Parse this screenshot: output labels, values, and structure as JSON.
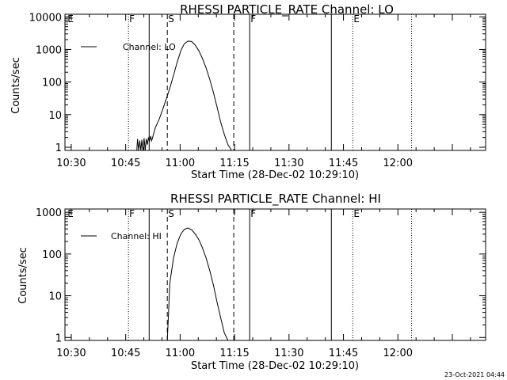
{
  "timestamp": "23-Oct-2021 04:44",
  "chart_data": [
    {
      "type": "line",
      "title": "RHESSI PARTICLE_RATE Channel: LO",
      "xlabel": "Start Time (28-Dec-02 10:29:10)",
      "ylabel": "Counts/sec",
      "yscale": "log",
      "xlim": [
        -0.9,
        115
      ],
      "ylim": [
        0.8,
        12000
      ],
      "xticks": [
        {
          "v": 0.833,
          "label": "10:30"
        },
        {
          "v": 15.833,
          "label": "10:45"
        },
        {
          "v": 30.833,
          "label": "11:00"
        },
        {
          "v": 45.833,
          "label": "11:15"
        },
        {
          "v": 60.833,
          "label": "11:30"
        },
        {
          "v": 75.833,
          "label": "11:45"
        },
        {
          "v": 90.833,
          "label": "12:00"
        }
      ],
      "yticks": [
        {
          "v": 1,
          "label": "1"
        },
        {
          "v": 10,
          "label": "10"
        },
        {
          "v": 100,
          "label": "100"
        },
        {
          "v": 1000,
          "label": "1000"
        },
        {
          "v": 10000,
          "label": "10000"
        }
      ],
      "legend": {
        "label": "Channel: LO",
        "position": "top-left"
      },
      "markers": [
        {
          "x": -0.4,
          "style": "none",
          "label": "E"
        },
        {
          "x": 16.6,
          "style": "dotted",
          "label": "F"
        },
        {
          "x": 22.3,
          "style": "solid",
          "label": ""
        },
        {
          "x": 27.3,
          "style": "dashed",
          "label": "S"
        },
        {
          "x": 45.6,
          "style": "dashed",
          "label": ""
        },
        {
          "x": 50.0,
          "style": "solid",
          "label": "F"
        },
        {
          "x": 72.5,
          "style": "solid",
          "label": ""
        },
        {
          "x": 78.4,
          "style": "dotted",
          "label": "E"
        },
        {
          "x": 94.6,
          "style": "dotted",
          "label": ""
        }
      ],
      "series": [
        {
          "name": "Channel: LO",
          "x": [
            18.9,
            19.1,
            19.4,
            19.7,
            20.0,
            20.3,
            20.6,
            20.9,
            21.2,
            21.5,
            21.8,
            22.1,
            22.4,
            22.7,
            23.0,
            24.0,
            25.0,
            26.0,
            27.0,
            28.0,
            29.0,
            30.0,
            31.0,
            32.0,
            33.0,
            34.0,
            35.0,
            36.0,
            37.0,
            38.0,
            39.0,
            40.0,
            41.0,
            42.0,
            43.0,
            44.0,
            45.0
          ],
          "values": [
            0.8,
            1.8,
            0.8,
            1.6,
            0.8,
            1.7,
            0.8,
            1.9,
            0.8,
            1.8,
            1.2,
            2.0,
            1.5,
            2.2,
            1.6,
            4,
            7,
            14,
            30,
            65,
            160,
            400,
            900,
            1500,
            1800,
            1750,
            1350,
            900,
            520,
            270,
            120,
            48,
            17,
            6,
            2.5,
            1.2,
            0.8
          ]
        }
      ]
    },
    {
      "type": "line",
      "title": "RHESSI PARTICLE_RATE Channel: HI",
      "xlabel": "Start Time (28-Dec-02 10:29:10)",
      "ylabel": "Counts/sec",
      "yscale": "log",
      "xlim": [
        -0.9,
        115
      ],
      "ylim": [
        0.85,
        1200
      ],
      "xticks": [
        {
          "v": 0.833,
          "label": "10:30"
        },
        {
          "v": 15.833,
          "label": "10:45"
        },
        {
          "v": 30.833,
          "label": "11:00"
        },
        {
          "v": 45.833,
          "label": "11:15"
        },
        {
          "v": 60.833,
          "label": "11:30"
        },
        {
          "v": 75.833,
          "label": "11:45"
        },
        {
          "v": 90.833,
          "label": "12:00"
        }
      ],
      "yticks": [
        {
          "v": 1,
          "label": "1"
        },
        {
          "v": 10,
          "label": "10"
        },
        {
          "v": 100,
          "label": "100"
        },
        {
          "v": 1000,
          "label": "1000"
        }
      ],
      "legend": {
        "label": "Channel: HI",
        "position": "top-left"
      },
      "markers": [
        {
          "x": -0.4,
          "style": "none",
          "label": "E"
        },
        {
          "x": 16.6,
          "style": "dotted",
          "label": "F"
        },
        {
          "x": 22.3,
          "style": "solid",
          "label": ""
        },
        {
          "x": 27.3,
          "style": "dashed",
          "label": "S"
        },
        {
          "x": 45.6,
          "style": "dashed",
          "label": ""
        },
        {
          "x": 50.0,
          "style": "solid",
          "label": "F"
        },
        {
          "x": 72.5,
          "style": "solid",
          "label": ""
        },
        {
          "x": 78.4,
          "style": "dotted",
          "label": "E"
        },
        {
          "x": 94.6,
          "style": "dotted",
          "label": ""
        }
      ],
      "series": [
        {
          "name": "Channel: HI",
          "x": [
            27.3,
            28.0,
            29.0,
            30.0,
            31.0,
            32.0,
            33.0,
            34.0,
            35.0,
            36.0,
            37.0,
            38.0,
            39.0,
            40.0,
            41.0,
            42.0,
            43.0,
            44.0
          ],
          "values": [
            0.85,
            20,
            80,
            180,
            300,
            390,
            420,
            380,
            300,
            220,
            140,
            80,
            40,
            18,
            7,
            3,
            1.3,
            0.85
          ]
        }
      ]
    }
  ]
}
